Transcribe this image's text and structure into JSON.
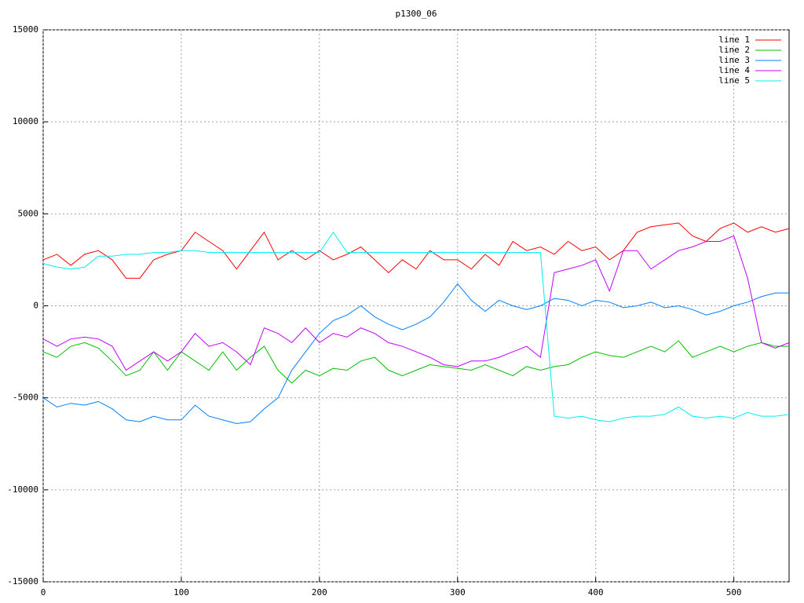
{
  "chart_data": {
    "type": "line",
    "title": "p1300_06",
    "x": [
      0,
      10,
      20,
      30,
      40,
      50,
      60,
      70,
      80,
      90,
      100,
      110,
      120,
      130,
      140,
      150,
      160,
      170,
      180,
      190,
      200,
      210,
      220,
      230,
      240,
      250,
      260,
      270,
      280,
      290,
      300,
      310,
      320,
      330,
      340,
      350,
      360,
      370,
      380,
      390,
      400,
      410,
      420,
      430,
      440,
      450,
      460,
      470,
      480,
      490,
      500,
      510,
      520,
      530,
      540
    ],
    "series": [
      {
        "name": "line 1",
        "color": "#ff0000",
        "values": [
          2500,
          2800,
          2200,
          2800,
          3000,
          2500,
          1500,
          1500,
          2500,
          2800,
          3000,
          4000,
          3500,
          3000,
          2000,
          3000,
          4000,
          2500,
          3000,
          2500,
          3000,
          2500,
          2800,
          3200,
          2500,
          1800,
          2500,
          2000,
          3000,
          2500,
          2500,
          2000,
          2800,
          2200,
          3500,
          3000,
          3200,
          2800,
          3500,
          3000,
          3200,
          2500,
          3000,
          4000,
          4300,
          4400,
          4500,
          3800,
          3500,
          4200,
          4500,
          4000,
          4300,
          4000,
          4200
        ]
      },
      {
        "name": "line 2",
        "color": "#00c000",
        "values": [
          -2500,
          -2800,
          -2200,
          -2000,
          -2300,
          -3000,
          -3800,
          -3500,
          -2500,
          -3500,
          -2500,
          -3000,
          -3500,
          -2500,
          -3500,
          -2800,
          -2200,
          -3500,
          -4200,
          -3500,
          -3800,
          -3400,
          -3500,
          -3000,
          -2800,
          -3500,
          -3800,
          -3500,
          -3200,
          -3300,
          -3400,
          -3500,
          -3200,
          -3500,
          -3800,
          -3300,
          -3500,
          -3300,
          -3200,
          -2800,
          -2500,
          -2700,
          -2800,
          -2500,
          -2200,
          -2500,
          -1900,
          -2800,
          -2500,
          -2200,
          -2500,
          -2200,
          -2000,
          -2200,
          -2200
        ]
      },
      {
        "name": "line 3",
        "color": "#0080ff",
        "values": [
          -5000,
          -5500,
          -5300,
          -5400,
          -5200,
          -5600,
          -6200,
          -6300,
          -6000,
          -6200,
          -6200,
          -5400,
          -6000,
          -6200,
          -6400,
          -6300,
          -5600,
          -5000,
          -3500,
          -2500,
          -1500,
          -800,
          -500,
          0,
          -600,
          -1000,
          -1300,
          -1000,
          -600,
          200,
          1200,
          300,
          -300,
          300,
          0,
          -200,
          0,
          400,
          300,
          0,
          300,
          200,
          -100,
          0,
          200,
          -100,
          0,
          -200,
          -500,
          -300,
          0,
          200,
          500,
          700,
          700
        ]
      },
      {
        "name": "line 4",
        "color": "#c000ff",
        "values": [
          -1800,
          -2200,
          -1800,
          -1700,
          -1800,
          -2200,
          -3500,
          -3000,
          -2500,
          -3000,
          -2500,
          -1500,
          -2200,
          -2000,
          -2500,
          -3200,
          -1200,
          -1500,
          -2000,
          -1200,
          -2000,
          -1500,
          -1700,
          -1200,
          -1500,
          -2000,
          -2200,
          -2500,
          -2800,
          -3200,
          -3300,
          -3000,
          -3000,
          -2800,
          -2500,
          -2200,
          -2800,
          1800,
          2000,
          2200,
          2500,
          800,
          3000,
          3000,
          2000,
          2500,
          3000,
          3200,
          3500,
          3500,
          3800,
          1500,
          -2000,
          -2300,
          -2000
        ]
      },
      {
        "name": "line 5",
        "color": "#00eeee",
        "values": [
          2300,
          2100,
          2000,
          2100,
          2700,
          2700,
          2800,
          2800,
          2900,
          2900,
          3000,
          3000,
          2900,
          2900,
          2900,
          2900,
          2900,
          2900,
          2900,
          2900,
          2900,
          4000,
          2900,
          2900,
          2900,
          2900,
          2900,
          2900,
          2900,
          2900,
          2900,
          2900,
          2900,
          2900,
          2900,
          2900,
          2900,
          -6000,
          -6100,
          -6000,
          -6200,
          -6300,
          -6100,
          -6000,
          -6000,
          -5900,
          -5500,
          -6000,
          -6100,
          -6000,
          -6100,
          -5800,
          -6000,
          -6000,
          -5900
        ]
      }
    ],
    "xlim": [
      0,
      540
    ],
    "xticks": [
      0,
      100,
      200,
      300,
      400,
      500
    ],
    "ylim": [
      -15000,
      15000
    ],
    "yticks": [
      -15000,
      -10000,
      -5000,
      0,
      5000,
      10000,
      15000
    ],
    "grid": true,
    "legend": "top-right"
  }
}
